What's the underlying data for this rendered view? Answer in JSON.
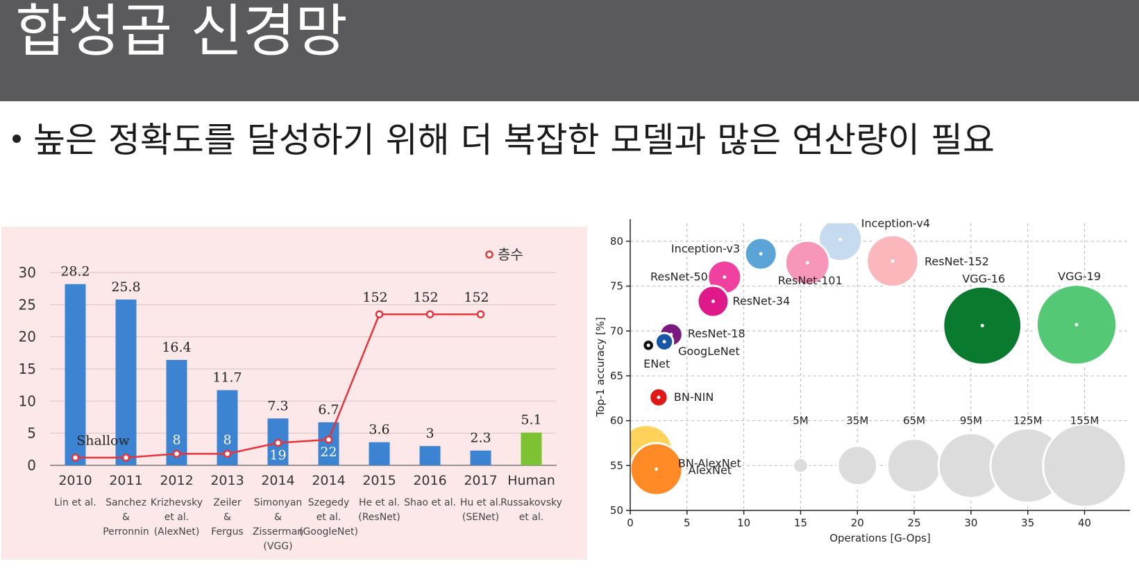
{
  "slide": {
    "title": "합성곱 신경망",
    "bullet": "높은 정확도를 달성하기 위해 더 복잡한 모델과 많은 연산량이 필요"
  },
  "chart_data": [
    {
      "type": "bar",
      "legend": "층수",
      "y_ticks": [
        "0",
        "5",
        "10",
        "15",
        "20",
        "25",
        "30"
      ],
      "ylim": [
        0,
        30
      ],
      "categories": [
        "2010",
        "2011",
        "2012",
        "2013",
        "2014",
        "2014",
        "2015",
        "2016",
        "2017",
        "Human"
      ],
      "authors": [
        [
          "Lin et al."
        ],
        [
          "Sanchez",
          "&",
          "Perronnin"
        ],
        [
          "Krizhevsky",
          "et al.",
          "(AlexNet)"
        ],
        [
          "Zeiler",
          "&",
          "Fergus"
        ],
        [
          "Simonyan",
          "&",
          "Zisserman",
          "(VGG)"
        ],
        [
          "Szegedy",
          "et al.",
          "(GoogleNet)"
        ],
        [
          "He et al.",
          "(ResNet)"
        ],
        [
          "Shao et al."
        ],
        [
          "Hu et al.",
          "(SENet)"
        ],
        [
          "Russakovsky",
          "et al."
        ]
      ],
      "values": [
        28.2,
        25.8,
        16.4,
        11.7,
        7.3,
        6.7,
        3.6,
        3,
        2.3,
        5.1
      ],
      "value_labels": [
        "28.2",
        "25.8",
        "16.4",
        "11.7",
        "7.3",
        "6.7",
        "3.6",
        "3",
        "2.3",
        "5.1"
      ],
      "bar_colors": [
        "#3c84d2",
        "#3c84d2",
        "#3c84d2",
        "#3c84d2",
        "#3c84d2",
        "#3c84d2",
        "#3c84d2",
        "#3c84d2",
        "#3c84d2",
        "#7cc232"
      ],
      "layers": [
        {
          "index": 0,
          "value": 1.2,
          "label": ""
        },
        {
          "index": 1,
          "value": 1.2,
          "label": ""
        },
        {
          "index": 2,
          "value": 1.8,
          "label": "8"
        },
        {
          "index": 3,
          "value": 1.8,
          "label": "8"
        },
        {
          "index": 4,
          "value": 3.5,
          "label": "19"
        },
        {
          "index": 5,
          "value": 4.0,
          "label": "22"
        },
        {
          "index": 6,
          "value": 23.5,
          "label": "152"
        },
        {
          "index": 7,
          "value": 23.5,
          "label": "152"
        },
        {
          "index": 8,
          "value": 23.5,
          "label": "152"
        }
      ],
      "shallow_label": "Shallow",
      "line_color": "#e8333a"
    },
    {
      "type": "scatter",
      "xlabel": "Operations [G-Ops]",
      "ylabel": "Top-1 accuracy [%]",
      "xlim": [
        0,
        44
      ],
      "ylim": [
        50,
        82
      ],
      "x_ticks": [
        "0",
        "5",
        "10",
        "15",
        "20",
        "25",
        "30",
        "35",
        "40"
      ],
      "y_ticks": [
        "50",
        "55",
        "60",
        "65",
        "70",
        "75",
        "80"
      ],
      "points": [
        {
          "name": "Inception-v4",
          "x": 18.5,
          "y": 80.2,
          "size_m": 42,
          "color": "#c6daf0"
        },
        {
          "name": "Inception-v3",
          "x": 11.5,
          "y": 78.6,
          "size_m": 23,
          "color": "#5aa4d8"
        },
        {
          "name": "ResNet-152",
          "x": 23.1,
          "y": 77.8,
          "size_m": 60,
          "color": "#fbb7bb"
        },
        {
          "name": "ResNet-101",
          "x": 15.6,
          "y": 77.6,
          "size_m": 44,
          "color": "#f796b8"
        },
        {
          "name": "ResNet-50",
          "x": 8.3,
          "y": 76.0,
          "size_m": 25,
          "color": "#f040a0"
        },
        {
          "name": "ResNet-34",
          "x": 7.3,
          "y": 73.3,
          "size_m": 22,
          "color": "#e0198a"
        },
        {
          "name": "VGG-16",
          "x": 31.0,
          "y": 70.6,
          "size_m": 138,
          "color": "#0a7a2e"
        },
        {
          "name": "VGG-19",
          "x": 39.3,
          "y": 70.7,
          "size_m": 144,
          "color": "#55c875"
        },
        {
          "name": "ResNet-18",
          "x": 3.6,
          "y": 69.6,
          "size_m": 11.7,
          "color": "#7a1a80"
        },
        {
          "name": "GoogLeNet",
          "x": 3.0,
          "y": 68.8,
          "size_m": 7,
          "color": "#1a56a8"
        },
        {
          "name": "ENet",
          "x": 1.6,
          "y": 68.4,
          "size_m": 3,
          "color": "#111111"
        },
        {
          "name": "BN-NIN",
          "x": 2.5,
          "y": 62.6,
          "size_m": 7.6,
          "color": "#e01818"
        },
        {
          "name": "BN-AlexNet",
          "x": 1.4,
          "y": 56.6,
          "size_m": 62,
          "color": "#ffd35a"
        },
        {
          "name": "AlexNet",
          "x": 2.3,
          "y": 54.6,
          "size_m": 61,
          "color": "#ff8a26"
        }
      ],
      "size_legend": [
        {
          "label": "5M",
          "x": 15,
          "size_m": 5
        },
        {
          "label": "35M",
          "x": 20,
          "size_m": 35
        },
        {
          "label": "65M",
          "x": 25,
          "size_m": 65
        },
        {
          "label": "95M",
          "x": 30,
          "size_m": 95
        },
        {
          "label": "125M",
          "x": 35,
          "size_m": 125
        },
        {
          "label": "155M",
          "x": 40,
          "size_m": 155
        }
      ],
      "size_legend_y": 55,
      "size_legend_color": "#dcdcdc"
    }
  ]
}
